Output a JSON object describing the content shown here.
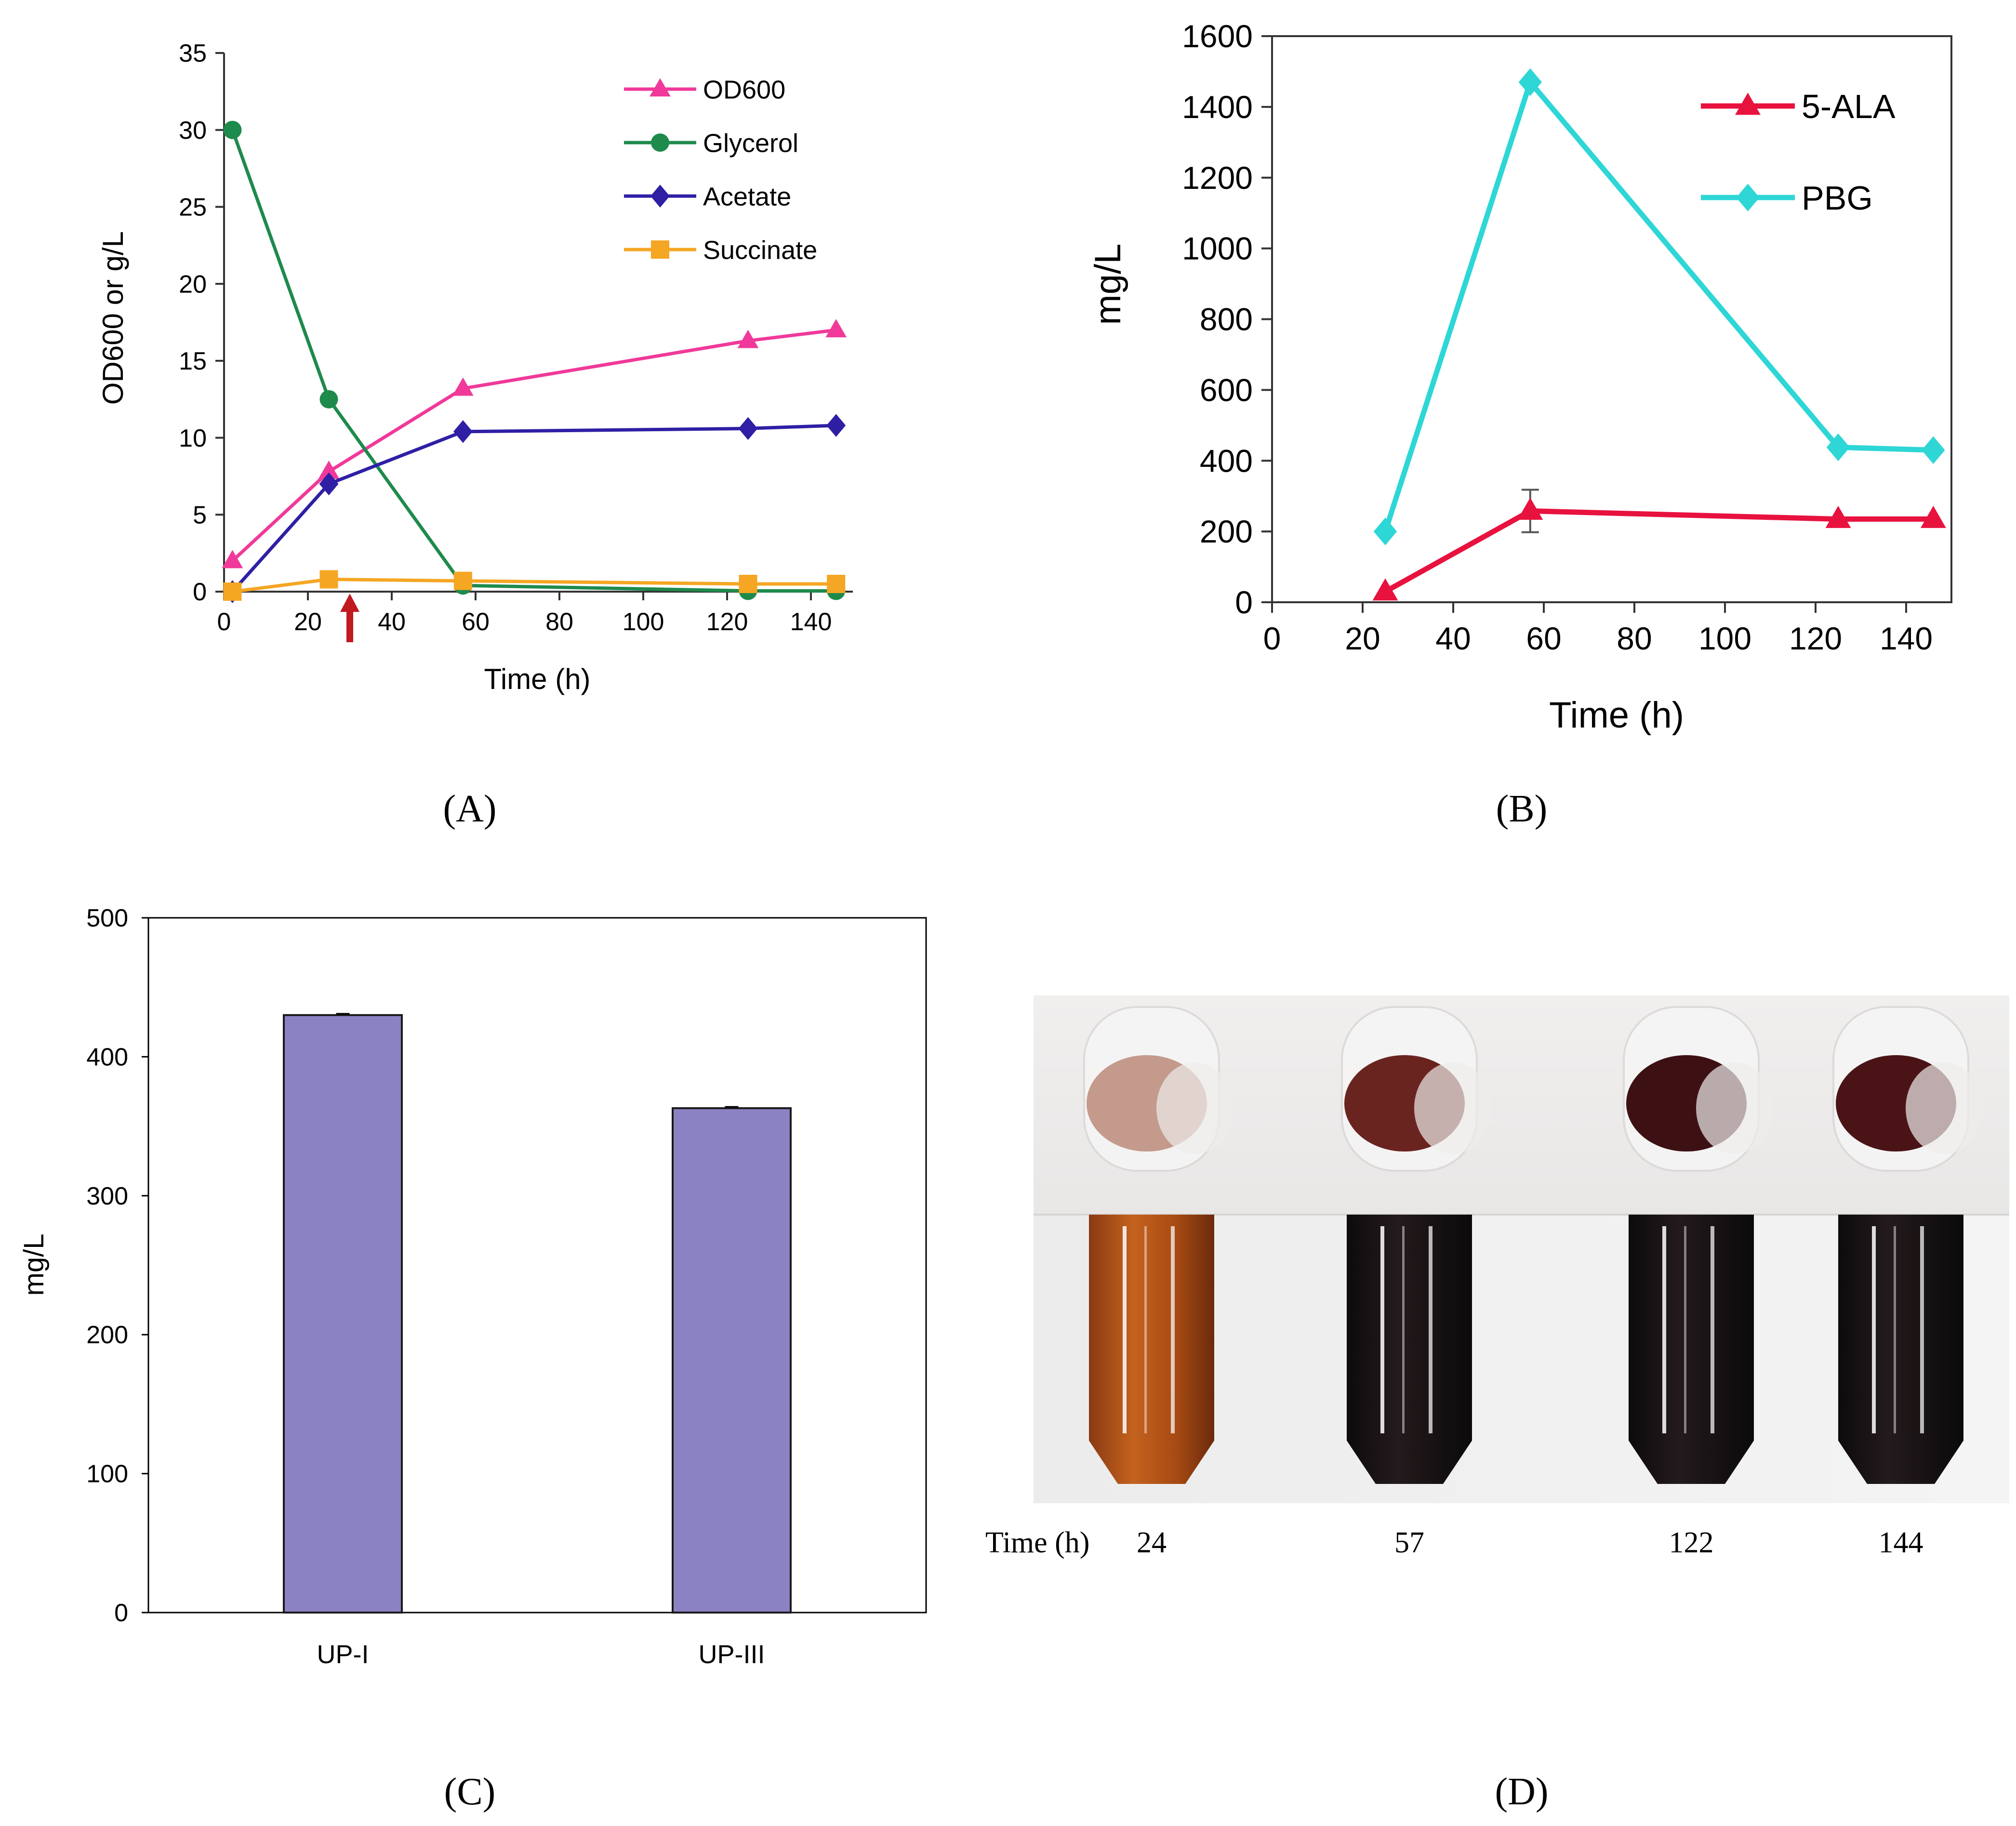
{
  "chart_data": [
    {
      "panel": "(A)",
      "type": "line",
      "title": "",
      "xlabel": "Time (h)",
      "ylabel": "OD600 or g/L",
      "xlim": [
        0,
        150
      ],
      "ylim": [
        0,
        35
      ],
      "xticks": [
        0,
        20,
        40,
        60,
        80,
        100,
        120,
        140
      ],
      "yticks": [
        0,
        5,
        10,
        15,
        20,
        25,
        30,
        35
      ],
      "legend_position": "top-right",
      "annotation": {
        "type": "arrow",
        "x": 30,
        "color": "#C0191F"
      },
      "series": [
        {
          "name": "OD600",
          "color": "#F0399A",
          "marker": "triangle",
          "x": [
            2,
            25,
            57,
            125,
            146
          ],
          "y": [
            2.0,
            7.8,
            13.2,
            16.3,
            17.0
          ]
        },
        {
          "name": "Glycerol",
          "color": "#1E8A4C",
          "marker": "circle",
          "x": [
            2,
            25,
            57,
            125,
            146
          ],
          "y": [
            30.0,
            12.5,
            0.4,
            0.05,
            0.05
          ]
        },
        {
          "name": "Acetate",
          "color": "#2E1FA5",
          "marker": "diamond",
          "x": [
            2,
            25,
            57,
            125,
            146
          ],
          "y": [
            0.0,
            7.0,
            10.4,
            10.6,
            10.8
          ]
        },
        {
          "name": "Succinate",
          "color": "#F5A623",
          "marker": "square",
          "x": [
            2,
            25,
            57,
            125,
            146
          ],
          "y": [
            0.0,
            0.8,
            0.7,
            0.5,
            0.5
          ]
        }
      ]
    },
    {
      "panel": "(B)",
      "type": "line",
      "title": "",
      "xlabel": "Time (h)",
      "ylabel": "mg/L",
      "xlim": [
        0,
        150
      ],
      "ylim": [
        0,
        1600
      ],
      "xticks": [
        0,
        20,
        40,
        60,
        80,
        100,
        120,
        140
      ],
      "yticks": [
        0,
        200,
        400,
        600,
        800,
        1000,
        1200,
        1400,
        1600
      ],
      "legend_position": "top-right",
      "series": [
        {
          "name": "5-ALA",
          "color": "#E8123F",
          "marker": "triangle",
          "x": [
            25,
            57,
            125,
            146
          ],
          "y": [
            30,
            258,
            235,
            235
          ],
          "error": [
            0,
            60,
            0,
            0
          ]
        },
        {
          "name": "PBG",
          "color": "#2ED6D6",
          "marker": "diamond",
          "x": [
            25,
            57,
            125,
            146
          ],
          "y": [
            200,
            1470,
            438,
            430
          ]
        }
      ]
    },
    {
      "panel": "(C)",
      "type": "bar",
      "title": "",
      "xlabel": "",
      "ylabel": "mg/L",
      "categories": [
        "UP-I",
        "UP-III"
      ],
      "values": [
        430,
        363
      ],
      "error": [
        1,
        1
      ],
      "color": "#8B82C4",
      "ylim": [
        0,
        500
      ],
      "yticks": [
        0,
        100,
        200,
        300,
        400,
        500
      ]
    }
  ],
  "panels": {
    "a": "(A)",
    "b": "(B)",
    "c": "(C)",
    "d": "(D)"
  },
  "photo": {
    "time_label": "Time (h)",
    "times": [
      "24",
      "57",
      "122",
      "144"
    ],
    "tube_colors": [
      "#7a2c10",
      "#1d1416",
      "#1b1214",
      "#1d1315"
    ],
    "drop_colors": [
      "#c49a8c",
      "#6a2420",
      "#3d1114",
      "#4a1417"
    ]
  }
}
